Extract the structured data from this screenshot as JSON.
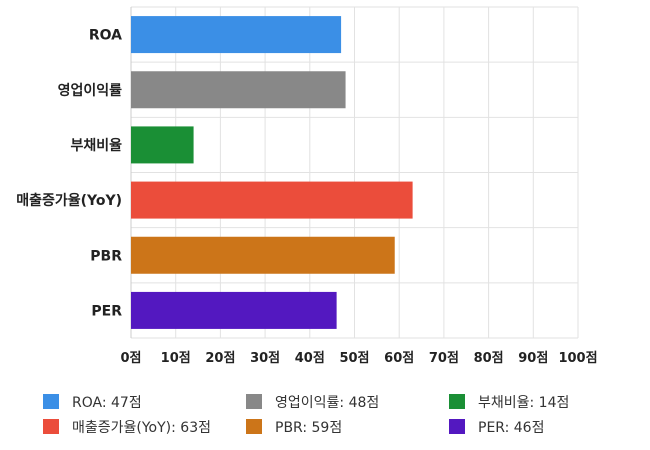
{
  "chart_data": {
    "type": "bar",
    "orientation": "horizontal",
    "categories": [
      "ROA",
      "영업이익률",
      "부채비율",
      "매출증가율(YoY)",
      "PBR",
      "PER"
    ],
    "values": [
      47,
      48,
      14,
      63,
      59,
      46
    ],
    "colors": [
      "#3b8fe6",
      "#888888",
      "#1a8f35",
      "#eb4d3b",
      "#cc7519",
      "#5318c0"
    ],
    "xlim": [
      0,
      100
    ],
    "xticks": [
      "0점",
      "10점",
      "20점",
      "30점",
      "40점",
      "50점",
      "60점",
      "70점",
      "80점",
      "90점",
      "100점"
    ],
    "grid": true,
    "legend_position": "bottom",
    "legend": [
      {
        "label": "ROA: 47점",
        "color": "#3b8fe6"
      },
      {
        "label": "영업이익률: 48점",
        "color": "#888888"
      },
      {
        "label": "부채비율: 14점",
        "color": "#1a8f35"
      },
      {
        "label": "매출증가율(YoY): 63점",
        "color": "#eb4d3b"
      },
      {
        "label": "PBR: 59점",
        "color": "#cc7519"
      },
      {
        "label": "PER: 46점",
        "color": "#5318c0"
      }
    ]
  }
}
